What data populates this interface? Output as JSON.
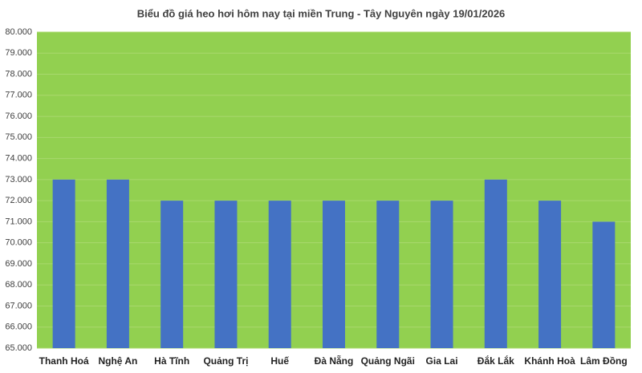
{
  "chart_data": {
    "type": "bar",
    "title": "Biểu đồ giá heo hơi hôm nay tại miền Trung - Tây Nguyên ngày 19/01/2026",
    "categories": [
      "Thanh Hoá",
      "Nghệ An",
      "Hà Tĩnh",
      "Quảng Trị",
      "Huế",
      "Đà Nẵng",
      "Quảng Ngãi",
      "Gia Lai",
      "Đắk Lắk",
      "Khánh Hoà",
      "Lâm Đồng"
    ],
    "values": [
      73000,
      73000,
      72000,
      72000,
      72000,
      72000,
      72000,
      72000,
      73000,
      72000,
      71000
    ],
    "color": "#4472c4",
    "plot_background": "#92d050",
    "ylim": [
      65000,
      80000
    ],
    "yticks": [
      {
        "value": 65000,
        "label": "65.000"
      },
      {
        "value": 66000,
        "label": "66.000"
      },
      {
        "value": 67000,
        "label": "67.000"
      },
      {
        "value": 68000,
        "label": "68.000"
      },
      {
        "value": 69000,
        "label": "69.000"
      },
      {
        "value": 70000,
        "label": "70.000"
      },
      {
        "value": 71000,
        "label": "71.000"
      },
      {
        "value": 72000,
        "label": "72.000"
      },
      {
        "value": 73000,
        "label": "73.000"
      },
      {
        "value": 74000,
        "label": "74.000"
      },
      {
        "value": 75000,
        "label": "75.000"
      },
      {
        "value": 76000,
        "label": "76.000"
      },
      {
        "value": 77000,
        "label": "77.000"
      },
      {
        "value": 78000,
        "label": "78.000"
      },
      {
        "value": 79000,
        "label": "79.000"
      },
      {
        "value": 80000,
        "label": "80.000"
      }
    ],
    "grid": true
  }
}
